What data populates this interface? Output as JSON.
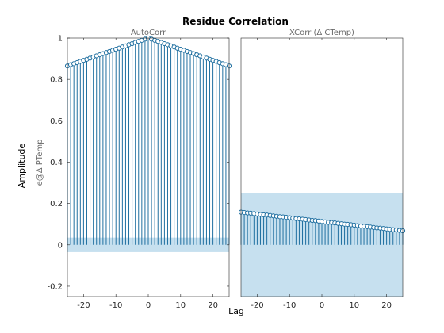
{
  "figure": {
    "title": "Residue Correlation",
    "ylabel": "Amplitude",
    "xlabel": "Lag"
  },
  "colors": {
    "stem": "#1f6fa0",
    "band": "#c6e0ef",
    "axis": "#262626",
    "subtitle": "#6b6b6b"
  },
  "chart_data": [
    {
      "type": "stem",
      "subtitle": "AutoCorr",
      "row_label": "e@Δ PTemp",
      "xlim": [
        -25,
        25
      ],
      "ylim": [
        -0.25,
        1
      ],
      "xticks": [
        -20,
        -10,
        0,
        10,
        20
      ],
      "yticks": [
        -0.2,
        0,
        0.2,
        0.4,
        0.6,
        0.8,
        1
      ],
      "ytick_labels": [
        "-0.2",
        "0",
        "0.2",
        "0.4",
        "0.6",
        "0.8",
        "1"
      ],
      "show_yticks": true,
      "confidence_band": [
        -0.035,
        0.035
      ],
      "x": [
        -25,
        -24,
        -23,
        -22,
        -21,
        -20,
        -19,
        -18,
        -17,
        -16,
        -15,
        -14,
        -13,
        -12,
        -11,
        -10,
        -9,
        -8,
        -7,
        -6,
        -5,
        -4,
        -3,
        -2,
        -1,
        0,
        1,
        2,
        3,
        4,
        5,
        6,
        7,
        8,
        9,
        10,
        11,
        12,
        13,
        14,
        15,
        16,
        17,
        18,
        19,
        20,
        21,
        22,
        23,
        24,
        25
      ],
      "y": [
        0.865,
        0.871,
        0.876,
        0.881,
        0.887,
        0.892,
        0.897,
        0.903,
        0.908,
        0.914,
        0.919,
        0.925,
        0.93,
        0.935,
        0.941,
        0.946,
        0.951,
        0.957,
        0.962,
        0.968,
        0.973,
        0.979,
        0.984,
        0.989,
        0.995,
        1.0,
        0.995,
        0.989,
        0.984,
        0.979,
        0.973,
        0.968,
        0.962,
        0.957,
        0.951,
        0.946,
        0.941,
        0.935,
        0.93,
        0.925,
        0.919,
        0.914,
        0.908,
        0.903,
        0.897,
        0.892,
        0.887,
        0.881,
        0.876,
        0.871,
        0.865
      ]
    },
    {
      "type": "stem",
      "subtitle": "XCorr (Δ CTemp)",
      "xlim": [
        -25,
        25
      ],
      "ylim": [
        -0.25,
        1
      ],
      "xticks": [
        -20,
        -10,
        0,
        10,
        20
      ],
      "show_yticks": false,
      "confidence_band": [
        -0.25,
        0.25
      ],
      "x": [
        -25,
        -24,
        -23,
        -22,
        -21,
        -20,
        -19,
        -18,
        -17,
        -16,
        -15,
        -14,
        -13,
        -12,
        -11,
        -10,
        -9,
        -8,
        -7,
        -6,
        -5,
        -4,
        -3,
        -2,
        -1,
        0,
        1,
        2,
        3,
        4,
        5,
        6,
        7,
        8,
        9,
        10,
        11,
        12,
        13,
        14,
        15,
        16,
        17,
        18,
        19,
        20,
        21,
        22,
        23,
        24,
        25
      ],
      "y": [
        0.158,
        0.156,
        0.154,
        0.153,
        0.151,
        0.149,
        0.147,
        0.145,
        0.144,
        0.142,
        0.14,
        0.138,
        0.136,
        0.135,
        0.133,
        0.131,
        0.129,
        0.127,
        0.126,
        0.124,
        0.122,
        0.12,
        0.118,
        0.117,
        0.115,
        0.113,
        0.111,
        0.109,
        0.108,
        0.106,
        0.104,
        0.102,
        0.1,
        0.099,
        0.097,
        0.095,
        0.093,
        0.091,
        0.09,
        0.088,
        0.086,
        0.084,
        0.082,
        0.081,
        0.079,
        0.077,
        0.075,
        0.073,
        0.072,
        0.07,
        0.068
      ]
    }
  ]
}
